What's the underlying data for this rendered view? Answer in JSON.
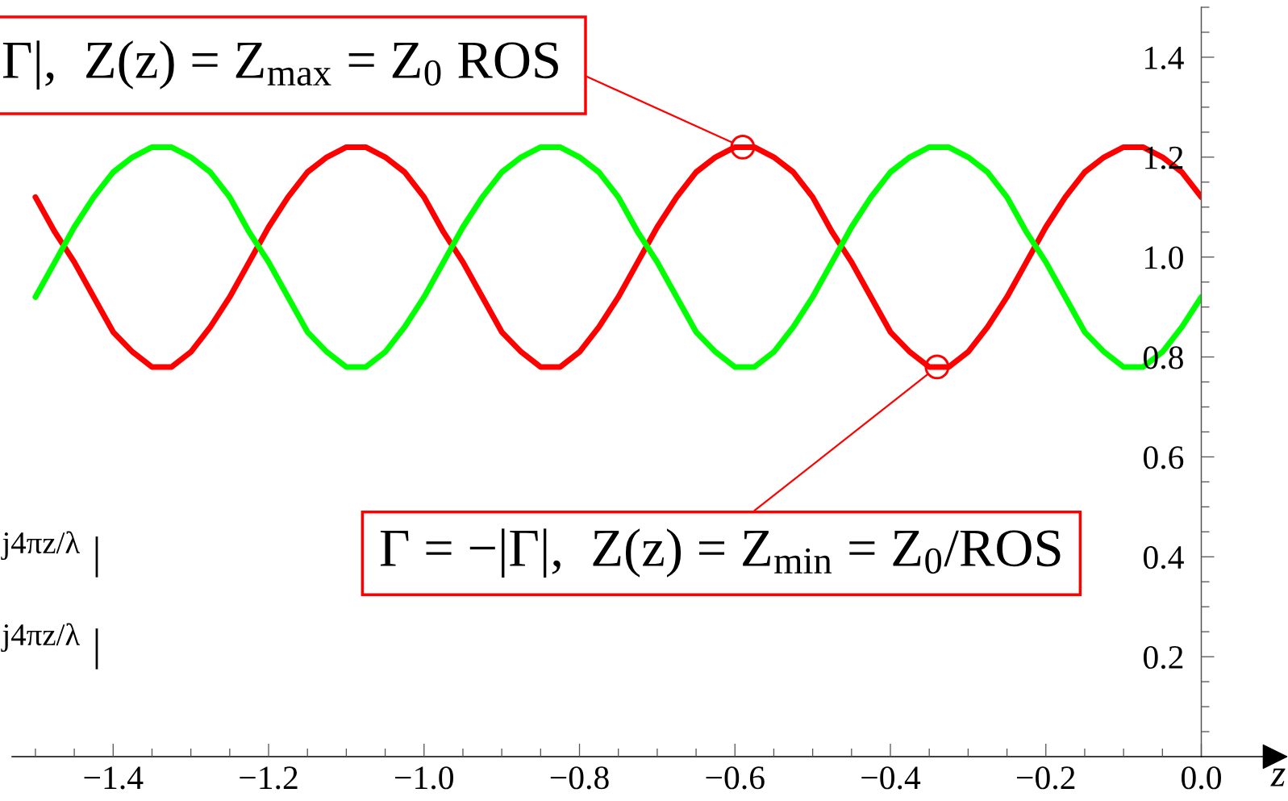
{
  "chart_data": {
    "type": "line",
    "x": [
      -1.5,
      -1.475,
      -1.45,
      -1.425,
      -1.4,
      -1.375,
      -1.35,
      -1.325,
      -1.3,
      -1.275,
      -1.25,
      -1.225,
      -1.2,
      -1.175,
      -1.15,
      -1.125,
      -1.1,
      -1.075,
      -1.05,
      -1.025,
      -1.0,
      -0.975,
      -0.95,
      -0.925,
      -0.9,
      -0.875,
      -0.85,
      -0.825,
      -0.8,
      -0.775,
      -0.75,
      -0.725,
      -0.7,
      -0.675,
      -0.65,
      -0.625,
      -0.6,
      -0.575,
      -0.55,
      -0.525,
      -0.5,
      -0.475,
      -0.45,
      -0.425,
      -0.4,
      -0.375,
      -0.35,
      -0.325,
      -0.3,
      -0.275,
      -0.25,
      -0.225,
      -0.2,
      -0.175,
      -0.15,
      -0.125,
      -0.1,
      -0.075,
      -0.05,
      -0.025,
      0
    ],
    "series": [
      {
        "color": "#ff0000",
        "values": [
          1.12,
          1.05,
          0.99,
          0.92,
          0.85,
          0.81,
          0.78,
          0.78,
          0.81,
          0.86,
          0.92,
          0.99,
          1.06,
          1.12,
          1.17,
          1.2,
          1.22,
          1.22,
          1.2,
          1.17,
          1.12,
          1.05,
          0.99,
          0.92,
          0.85,
          0.81,
          0.78,
          0.78,
          0.81,
          0.86,
          0.92,
          0.99,
          1.06,
          1.12,
          1.17,
          1.2,
          1.22,
          1.22,
          1.2,
          1.17,
          1.12,
          1.05,
          0.99,
          0.92,
          0.85,
          0.81,
          0.78,
          0.78,
          0.81,
          0.86,
          0.92,
          0.99,
          1.06,
          1.12,
          1.17,
          1.2,
          1.22,
          1.22,
          1.2,
          1.17,
          1.12
        ]
      },
      {
        "color": "#00ff00",
        "values": [
          0.92,
          0.99,
          1.06,
          1.12,
          1.17,
          1.2,
          1.22,
          1.22,
          1.2,
          1.17,
          1.12,
          1.05,
          0.99,
          0.92,
          0.85,
          0.81,
          0.78,
          0.78,
          0.81,
          0.86,
          0.92,
          0.99,
          1.06,
          1.12,
          1.17,
          1.2,
          1.22,
          1.22,
          1.2,
          1.17,
          1.12,
          1.05,
          0.99,
          0.92,
          0.85,
          0.81,
          0.78,
          0.78,
          0.81,
          0.86,
          0.92,
          0.99,
          1.06,
          1.12,
          1.17,
          1.2,
          1.22,
          1.22,
          1.2,
          1.17,
          1.12,
          1.05,
          0.99,
          0.92,
          0.85,
          0.81,
          0.78,
          0.78,
          0.81,
          0.86,
          0.92
        ]
      }
    ],
    "xlim": [
      -1.53,
      0
    ],
    "xticks": [
      {
        "value": -1.5,
        "label": null
      },
      {
        "value": -1.45,
        "label": null
      },
      {
        "value": -1.4,
        "label": "−1.4"
      },
      {
        "value": -1.35,
        "label": null
      },
      {
        "value": -1.3,
        "label": null
      },
      {
        "value": -1.25,
        "label": null
      },
      {
        "value": -1.2,
        "label": "−1.2"
      },
      {
        "value": -1.15,
        "label": null
      },
      {
        "value": -1.1,
        "label": null
      },
      {
        "value": -1.05,
        "label": null
      },
      {
        "value": -1.0,
        "label": "−1.0"
      },
      {
        "value": -0.95,
        "label": null
      },
      {
        "value": -0.9,
        "label": null
      },
      {
        "value": -0.85,
        "label": null
      },
      {
        "value": -0.8,
        "label": "−0.8"
      },
      {
        "value": -0.75,
        "label": null
      },
      {
        "value": -0.7,
        "label": null
      },
      {
        "value": -0.65,
        "label": null
      },
      {
        "value": -0.6,
        "label": "−0.6"
      },
      {
        "value": -0.55,
        "label": null
      },
      {
        "value": -0.5,
        "label": null
      },
      {
        "value": -0.45,
        "label": null
      },
      {
        "value": -0.4,
        "label": "−0.4"
      },
      {
        "value": -0.35,
        "label": null
      },
      {
        "value": -0.3,
        "label": null
      },
      {
        "value": -0.25,
        "label": null
      },
      {
        "value": -0.2,
        "label": "−0.2"
      },
      {
        "value": -0.15,
        "label": null
      },
      {
        "value": -0.1,
        "label": null
      },
      {
        "value": -0.05,
        "label": null
      },
      {
        "value": 0,
        "label": "0.0"
      }
    ],
    "ylim": [
      0,
      1.5
    ],
    "yticks": [
      {
        "value": 0.05,
        "label": null
      },
      {
        "value": 0.1,
        "label": null
      },
      {
        "value": 0.15,
        "label": null
      },
      0.2,
      {
        "value": 0.25,
        "label": null
      },
      {
        "value": 0.3,
        "label": null
      },
      {
        "value": 0.35,
        "label": null
      },
      0.4,
      {
        "value": 0.45,
        "label": null
      },
      {
        "value": 0.5,
        "label": null
      },
      {
        "value": 0.55,
        "label": null
      },
      0.6,
      {
        "value": 0.65,
        "label": null
      },
      {
        "value": 0.7,
        "label": null
      },
      {
        "value": 0.75,
        "label": null
      },
      0.8,
      {
        "value": 0.85,
        "label": null
      },
      {
        "value": 0.9,
        "label": null
      },
      {
        "value": 0.95,
        "label": null
      },
      {
        "value": 1,
        "label": "1.0"
      },
      {
        "value": 1.05,
        "label": null
      },
      {
        "value": 1.1,
        "label": null
      },
      {
        "value": 1.15,
        "label": null
      },
      1.2,
      {
        "value": 1.25,
        "label": null
      },
      {
        "value": 1.3,
        "label": null
      },
      {
        "value": 1.35,
        "label": null
      },
      1.4,
      {
        "value": 1.45,
        "label": null
      },
      {
        "value": 1.5,
        "label": null
      }
    ],
    "xlabel": "z",
    "annotations": [
      {
        "text": "Γ|,  Z(z) = Z$_{max}$ = Z$_{0}$ ROS",
        "x": -0.59,
        "y": 1.22
      },
      {
        "text": "Γ = −|Γ|,  Z(z) = Z$_{min}$ = Z$_{0}$/ROS",
        "x": -0.34,
        "y": 0.78
      },
      "$^{j4πz/λ}$ |",
      "$^{j4πz/λ}$ |"
    ]
  }
}
